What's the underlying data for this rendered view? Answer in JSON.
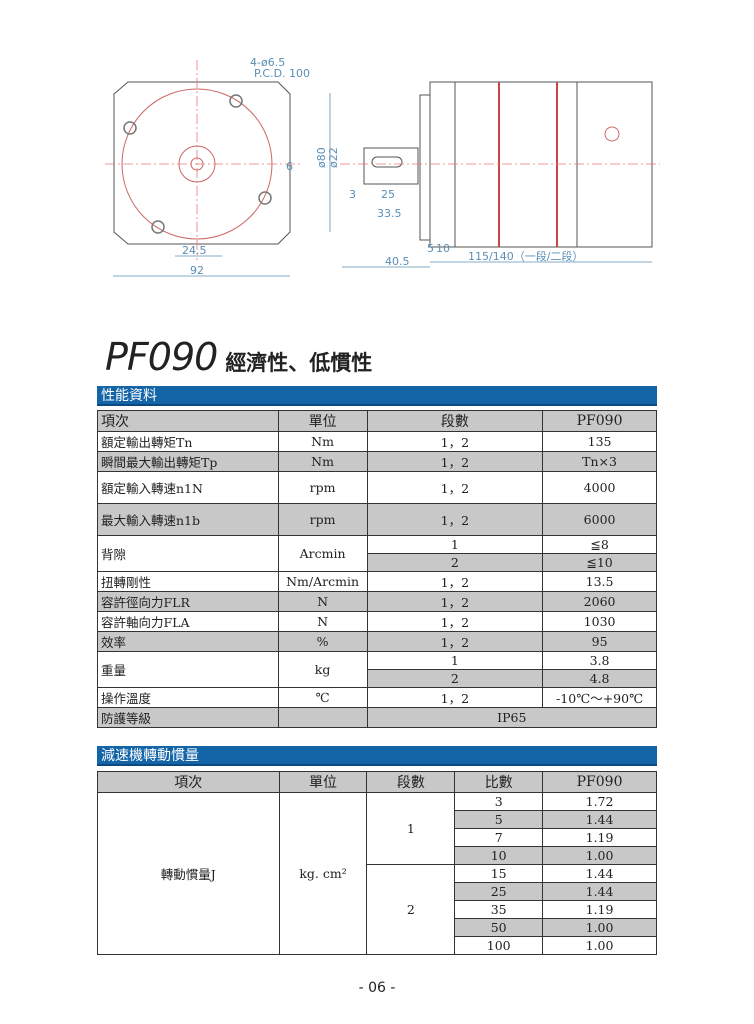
{
  "drawing": {
    "hole_note": "4-ø6.5",
    "pcd": "P.C.D. 100",
    "dim_key": "6",
    "dim_245": "24.5",
    "dim_92": "92",
    "dim_d80": "ø80",
    "dim_d22": "ø22",
    "dim_3": "3",
    "dim_25": "25",
    "dim_335": "33.5",
    "dim_405": "40.5",
    "dim_5": "5",
    "dim_10": "10",
    "dim_len": "115/140（一段/二段）"
  },
  "title": {
    "model": "PF090",
    "subtitle": "經濟性、低慣性"
  },
  "perf": {
    "bar": "性能資料",
    "header": [
      "項次",
      "單位",
      "段數",
      "PF090"
    ],
    "rows": [
      {
        "item": "額定輸出轉矩Tn",
        "unit": "Nm",
        "stage": "1，2",
        "value": "135"
      },
      {
        "item": "瞬間最大輸出轉矩Tp",
        "unit": "Nm",
        "stage": "1，2",
        "value": "Tn×3"
      },
      {
        "item": "額定輸入轉速n1N",
        "unit": "rpm",
        "stage": "1，2",
        "value": "4000"
      },
      {
        "item": "最大輸入轉速n1b",
        "unit": "rpm",
        "stage": "1，2",
        "value": "6000"
      },
      {
        "item": "背隙",
        "unit": "Arcmin",
        "stage": "1",
        "value": "≦8",
        "stage2": "2",
        "value2": "≦10"
      },
      {
        "item": "扭轉剛性",
        "unit": "Nm/Arcmin",
        "stage": "1，2",
        "value": "13.5"
      },
      {
        "item": "容許徑向力FLR",
        "unit": "N",
        "stage": "1，2",
        "value": "2060"
      },
      {
        "item": "容許軸向力FLA",
        "unit": "N",
        "stage": "1，2",
        "value": "1030"
      },
      {
        "item": "效率",
        "unit": "%",
        "stage": "1，2",
        "value": "95"
      },
      {
        "item": "重量",
        "unit": "kg",
        "stage": "1",
        "value": "3.8",
        "stage2": "2",
        "value2": "4.8"
      },
      {
        "item": "操作溫度",
        "unit": "℃",
        "stage": "1，2",
        "value": "-10℃～+90℃"
      },
      {
        "item": "防護等級",
        "unit": "",
        "value": "IP65"
      }
    ]
  },
  "inertia": {
    "bar": "減速機轉動慣量",
    "header": [
      "項次",
      "單位",
      "段數",
      "比數",
      "PF090"
    ],
    "item": "轉動慣量J",
    "unit": "kg. cm²",
    "groups": [
      {
        "stage": "1",
        "rows": [
          {
            "ratio": "3",
            "value": "1.72"
          },
          {
            "ratio": "5",
            "value": "1.44"
          },
          {
            "ratio": "7",
            "value": "1.19"
          },
          {
            "ratio": "10",
            "value": "1.00"
          }
        ]
      },
      {
        "stage": "2",
        "rows": [
          {
            "ratio": "15",
            "value": "1.44"
          },
          {
            "ratio": "25",
            "value": "1.44"
          },
          {
            "ratio": "35",
            "value": "1.19"
          },
          {
            "ratio": "50",
            "value": "1.00"
          },
          {
            "ratio": "100",
            "value": "1.00"
          }
        ]
      }
    ]
  },
  "page_number": "- 06 -"
}
